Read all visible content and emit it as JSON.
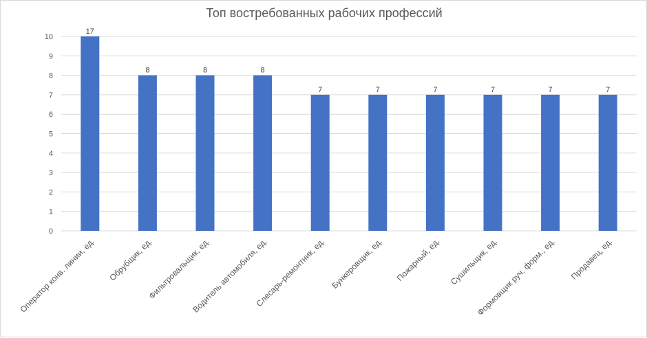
{
  "chart_data": {
    "type": "bar",
    "title": "Топ востребованных рабочих профессий",
    "categories": [
      "Оператор конв. линии, ед.",
      "Обрубщик, ед.",
      "Фильтровальщик, ед.",
      "Водитель автомобиля, ед.",
      "Слесарь-ремонтник, ед.",
      "Бункеровщик, ед.",
      "Пожарный, ед.",
      "Сушильщик, ед.",
      "Формовщик руч. форм., ед.",
      "Продавец, ед."
    ],
    "values": [
      17,
      8,
      8,
      8,
      7,
      7,
      7,
      7,
      7,
      7
    ],
    "data_labels": [
      "17",
      "8",
      "8",
      "8",
      "7",
      "7",
      "7",
      "7",
      "7",
      "7"
    ],
    "y_ticks": [
      "0",
      "1",
      "2",
      "3",
      "4",
      "5",
      "6",
      "7",
      "8",
      "9",
      "10"
    ],
    "ylim": [
      0,
      10
    ],
    "grid": true,
    "legend": "none",
    "bar_color": "#4472c4",
    "grid_color": "#d9d9d9"
  }
}
